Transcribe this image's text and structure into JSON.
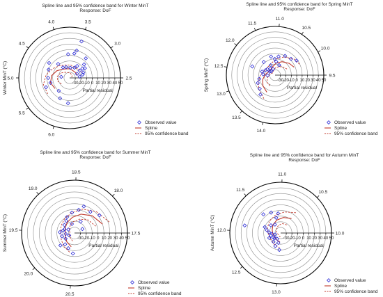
{
  "legend": {
    "observed": "Observed value",
    "spline": "Spline",
    "band": "95% confidence band"
  },
  "colors": {
    "observed": "#2b2bd6",
    "spline": "#c0392b",
    "band": "#c0392b",
    "grid": "#8a8a8a",
    "axis": "#000000"
  },
  "chart_data": [
    {
      "type": "polar-scatter",
      "title": "Spline line and 95% confidence band for Winter MinT",
      "subtitle": "Response: DoF",
      "angle_label": "Winter MinT (°C)",
      "radial_label": "Partial residual",
      "angle_ticks": [
        "2.5",
        "3.0",
        "3.5",
        "4.0",
        "4.5",
        "5.0",
        "5.5",
        "6.0"
      ],
      "radial_ticks": [
        "-30",
        "-20",
        "-10",
        "0",
        "10",
        "20",
        "30",
        "40",
        "50"
      ],
      "radial_range": [
        -40,
        50
      ],
      "observed": [
        [
          3.5,
          28
        ],
        [
          3.55,
          10
        ],
        [
          3.8,
          2
        ],
        [
          3.6,
          4
        ],
        [
          3.2,
          5
        ],
        [
          3.1,
          -5
        ],
        [
          2.95,
          -8
        ],
        [
          3.0,
          -12
        ],
        [
          3.3,
          -15
        ],
        [
          3.4,
          -20
        ],
        [
          3.7,
          -22
        ],
        [
          4.0,
          -20
        ],
        [
          4.2,
          -18
        ],
        [
          3.0,
          -18
        ],
        [
          2.8,
          -14
        ],
        [
          2.7,
          -16
        ],
        [
          2.6,
          -22
        ],
        [
          4.3,
          -8
        ],
        [
          4.5,
          5
        ],
        [
          4.7,
          0
        ],
        [
          5.0,
          -2
        ],
        [
          5.2,
          -5
        ],
        [
          5.3,
          5
        ],
        [
          5.7,
          -10
        ],
        [
          5.9,
          0
        ],
        [
          6.2,
          5
        ],
        [
          4.9,
          -25
        ],
        [
          2.9,
          -25
        ]
      ],
      "spline": [
        [
          5.5,
          -8
        ],
        [
          5.2,
          -5
        ],
        [
          4.9,
          -8
        ],
        [
          4.6,
          -14
        ],
        [
          4.3,
          -20
        ],
        [
          4.0,
          -23
        ],
        [
          3.7,
          -24
        ],
        [
          3.4,
          -26
        ],
        [
          3.1,
          -26
        ],
        [
          2.8,
          -26
        ]
      ],
      "band_upper": [
        [
          5.5,
          8
        ],
        [
          5.2,
          8
        ],
        [
          4.9,
          2
        ],
        [
          4.6,
          -6
        ],
        [
          4.3,
          -12
        ],
        [
          4.0,
          -16
        ],
        [
          3.7,
          -17
        ],
        [
          3.4,
          -19
        ],
        [
          3.1,
          -18
        ],
        [
          2.8,
          -16
        ]
      ],
      "band_lower": [
        [
          5.5,
          -22
        ],
        [
          5.2,
          -18
        ],
        [
          4.9,
          -18
        ],
        [
          4.6,
          -22
        ],
        [
          4.3,
          -27
        ],
        [
          4.0,
          -30
        ],
        [
          3.7,
          -31
        ],
        [
          3.4,
          -33
        ],
        [
          3.1,
          -34
        ],
        [
          2.8,
          -36
        ]
      ]
    },
    {
      "type": "polar-scatter",
      "title": "Spline line and 95% confidence band for Spring MinT",
      "subtitle": "Response: DoF",
      "angle_label": "Spring MinT (°C)",
      "radial_label": "Partial residual",
      "angle_ticks": [
        "9.5",
        "10.0",
        "10.5",
        "11.0",
        "11.5",
        "12.0",
        "12.5",
        "13.0",
        "13.5",
        "14.0"
      ],
      "radial_ticks": [
        "-30",
        "-20",
        "-10",
        "0",
        "10",
        "20",
        "30",
        "40",
        "50"
      ],
      "radial_range": [
        -40,
        50
      ],
      "observed": [
        [
          10.1,
          8
        ],
        [
          10.3,
          2
        ],
        [
          10.6,
          0
        ],
        [
          10.9,
          -5
        ],
        [
          11.1,
          -10
        ],
        [
          11.3,
          -5
        ],
        [
          11.0,
          -15
        ],
        [
          11.5,
          -20
        ],
        [
          11.7,
          -25
        ],
        [
          11.9,
          -30
        ],
        [
          12.0,
          -22
        ],
        [
          12.1,
          -28
        ],
        [
          12.2,
          -20
        ],
        [
          12.4,
          -15
        ],
        [
          12.6,
          -18
        ],
        [
          12.9,
          -10
        ],
        [
          13.1,
          -5
        ],
        [
          13.4,
          -2
        ],
        [
          13.6,
          5
        ],
        [
          11.8,
          -8
        ],
        [
          12.3,
          5
        ],
        [
          11.4,
          -28
        ],
        [
          12.7,
          -26
        ],
        [
          10.7,
          -20
        ]
      ],
      "spline": [
        [
          13.8,
          -5
        ],
        [
          13.4,
          -10
        ],
        [
          13.0,
          -16
        ],
        [
          12.6,
          -22
        ],
        [
          12.2,
          -26
        ],
        [
          11.8,
          -27
        ],
        [
          11.4,
          -24
        ],
        [
          11.0,
          -18
        ],
        [
          10.6,
          -12
        ],
        [
          10.2,
          -6
        ],
        [
          9.9,
          -2
        ]
      ],
      "band_upper": [
        [
          13.8,
          8
        ],
        [
          13.4,
          0
        ],
        [
          13.0,
          -7
        ],
        [
          12.6,
          -14
        ],
        [
          12.2,
          -19
        ],
        [
          11.8,
          -20
        ],
        [
          11.4,
          -17
        ],
        [
          11.0,
          -10
        ],
        [
          10.6,
          -2
        ],
        [
          10.2,
          6
        ],
        [
          9.9,
          10
        ]
      ],
      "band_lower": [
        [
          13.8,
          -18
        ],
        [
          13.4,
          -20
        ],
        [
          13.0,
          -25
        ],
        [
          12.6,
          -30
        ],
        [
          12.2,
          -33
        ],
        [
          11.8,
          -34
        ],
        [
          11.4,
          -31
        ],
        [
          11.0,
          -26
        ],
        [
          10.6,
          -22
        ],
        [
          10.2,
          -18
        ],
        [
          9.9,
          -14
        ]
      ]
    },
    {
      "type": "polar-scatter",
      "title": "Spline line and 95% confidence band for Summer MinT",
      "subtitle": "Response: DoF",
      "angle_label": "Summer MinT (°C)",
      "radial_label": "Partial residual",
      "angle_ticks": [
        "17.5",
        "18.0",
        "18.5",
        "19.0",
        "19.5",
        "20.0",
        "20.5"
      ],
      "radial_ticks": [
        "-30",
        "-20",
        "-10",
        "0",
        "10",
        "20",
        "30",
        "40",
        "50"
      ],
      "radial_range": [
        -40,
        50
      ],
      "observed": [
        [
          17.9,
          12
        ],
        [
          18.1,
          5
        ],
        [
          18.3,
          8
        ],
        [
          18.4,
          0
        ],
        [
          18.6,
          -5
        ],
        [
          18.8,
          -10
        ],
        [
          18.9,
          -15
        ],
        [
          19.1,
          -18
        ],
        [
          19.3,
          -22
        ],
        [
          19.4,
          -20
        ],
        [
          19.6,
          -25
        ],
        [
          19.7,
          -18
        ],
        [
          19.9,
          -22
        ],
        [
          20.1,
          -15
        ],
        [
          20.3,
          -12
        ],
        [
          20.5,
          -5
        ],
        [
          19.2,
          -28
        ],
        [
          18.7,
          -24
        ],
        [
          19.8,
          -30
        ],
        [
          20.0,
          -8
        ],
        [
          18.2,
          -18
        ],
        [
          17.8,
          -25
        ],
        [
          19.5,
          -15
        ]
      ],
      "spline": [
        [
          17.7,
          10
        ],
        [
          18.0,
          2
        ],
        [
          18.3,
          -6
        ],
        [
          18.6,
          -13
        ],
        [
          18.9,
          -18
        ],
        [
          19.2,
          -22
        ],
        [
          19.5,
          -24
        ],
        [
          19.8,
          -23
        ],
        [
          20.1,
          -20
        ],
        [
          20.4,
          -16
        ]
      ],
      "band_upper": [
        [
          17.7,
          22
        ],
        [
          18.0,
          12
        ],
        [
          18.3,
          3
        ],
        [
          18.6,
          -5
        ],
        [
          18.9,
          -10
        ],
        [
          19.2,
          -14
        ],
        [
          19.5,
          -16
        ],
        [
          19.8,
          -15
        ],
        [
          20.1,
          -11
        ],
        [
          20.4,
          -6
        ]
      ],
      "band_lower": [
        [
          17.7,
          -2
        ],
        [
          18.0,
          -8
        ],
        [
          18.3,
          -15
        ],
        [
          18.6,
          -21
        ],
        [
          18.9,
          -26
        ],
        [
          19.2,
          -30
        ],
        [
          19.5,
          -32
        ],
        [
          19.8,
          -31
        ],
        [
          20.1,
          -29
        ],
        [
          20.4,
          -26
        ]
      ]
    },
    {
      "type": "polar-scatter",
      "title": "Spline line and 95% confidence band for Autumn MinT",
      "subtitle": "Response: DoF",
      "angle_label": "Autumn MinT (°C)",
      "radial_label": "Partial residual",
      "angle_ticks": [
        "10.0",
        "10.5",
        "11.0",
        "11.5",
        "12.0",
        "12.5",
        "13.0"
      ],
      "radial_ticks": [
        "-30",
        "-20",
        "-10",
        "0",
        "10",
        "20",
        "30",
        "40",
        "50"
      ],
      "radial_range": [
        -40,
        50
      ],
      "observed": [
        [
          11.1,
          -5
        ],
        [
          11.3,
          0
        ],
        [
          11.5,
          5
        ],
        [
          11.8,
          -10
        ],
        [
          11.9,
          -15
        ],
        [
          12.0,
          -20
        ],
        [
          12.1,
          -25
        ],
        [
          12.2,
          -22
        ],
        [
          12.3,
          -18
        ],
        [
          12.4,
          -25
        ],
        [
          12.6,
          -20
        ],
        [
          12.8,
          -15
        ],
        [
          13.0,
          -10
        ],
        [
          12.7,
          -28
        ],
        [
          12.5,
          -26
        ],
        [
          11.6,
          -18
        ],
        [
          11.4,
          -22
        ],
        [
          11.2,
          -12
        ],
        [
          11.9,
          25
        ],
        [
          12.2,
          -30
        ],
        [
          12.9,
          -22
        ]
      ],
      "spline": [
        [
          10.6,
          -8
        ],
        [
          10.9,
          -12
        ],
        [
          11.2,
          -16
        ],
        [
          11.5,
          -20
        ],
        [
          11.8,
          -24
        ],
        [
          12.1,
          -26
        ],
        [
          12.4,
          -27
        ],
        [
          12.7,
          -26
        ],
        [
          13.0,
          -24
        ]
      ],
      "band_upper": [
        [
          10.6,
          5
        ],
        [
          10.9,
          -2
        ],
        [
          11.2,
          -7
        ],
        [
          11.5,
          -11
        ],
        [
          11.8,
          -15
        ],
        [
          12.1,
          -18
        ],
        [
          12.4,
          -19
        ],
        [
          12.7,
          -17
        ],
        [
          13.0,
          -14
        ]
      ],
      "band_lower": [
        [
          10.6,
          -22
        ],
        [
          10.9,
          -23
        ],
        [
          11.2,
          -26
        ],
        [
          11.5,
          -29
        ],
        [
          11.8,
          -32
        ],
        [
          12.1,
          -34
        ],
        [
          12.4,
          -35
        ],
        [
          12.7,
          -34
        ],
        [
          13.0,
          -33
        ]
      ]
    }
  ]
}
